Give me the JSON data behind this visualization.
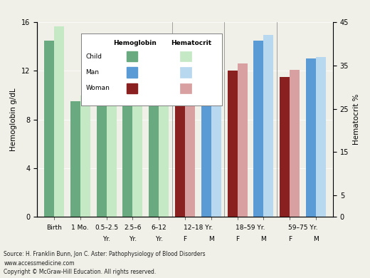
{
  "ylabel_left": "Hemoglobin g/dL",
  "ylabel_right": "Hematocrit %",
  "ylim_left": [
    0,
    16
  ],
  "ylim_right": [
    0,
    45
  ],
  "yticks_left": [
    0,
    4,
    8,
    12,
    16
  ],
  "yticks_right": [
    0,
    5,
    15,
    25,
    35,
    45
  ],
  "groups": [
    {
      "label": "Birth",
      "sublabel": "",
      "hgb": 14.5,
      "hct": 44.0,
      "type": "child"
    },
    {
      "label": "1 Mo.",
      "sublabel": "",
      "hgb": 9.5,
      "hct": 28.0,
      "type": "child"
    },
    {
      "label": "0.5–2.5\nYr.",
      "sublabel": "",
      "hgb": 10.0,
      "hct": 30.0,
      "type": "child"
    },
    {
      "label": "2.5–6\nYr.",
      "sublabel": "",
      "hgb": 11.0,
      "hct": 32.0,
      "type": "child"
    },
    {
      "label": "6–12\nYr.",
      "sublabel": "",
      "hgb": 11.5,
      "hct": 33.5,
      "type": "child"
    },
    {
      "label": "12–18 Yr.",
      "sublabel": "F",
      "hgb": 12.0,
      "hct": 35.5,
      "type": "woman"
    },
    {
      "label": "12–18 Yr.",
      "sublabel": "M",
      "hgb": 13.0,
      "hct": 36.5,
      "type": "man"
    },
    {
      "label": "18–59 Yr.",
      "sublabel": "F",
      "hgb": 12.0,
      "hct": 35.5,
      "type": "woman"
    },
    {
      "label": "18–59 Yr.",
      "sublabel": "M",
      "hgb": 14.5,
      "hct": 42.0,
      "type": "man"
    },
    {
      "label": "59–75 Yr.",
      "sublabel": "F",
      "hgb": 11.5,
      "hct": 34.0,
      "type": "woman"
    },
    {
      "label": "59–75 Yr.",
      "sublabel": "M",
      "hgb": 13.0,
      "hct": 37.0,
      "type": "man"
    }
  ],
  "colors": {
    "child_hgb": "#6aaa80",
    "child_hct": "#c5e8c5",
    "man_hgb": "#5b9bd5",
    "man_hct": "#b8d8f0",
    "woman_hgb": "#8b2020",
    "woman_hct": "#d8a0a0"
  },
  "legend_title_hgb": "Hemoglobin",
  "legend_title_hct": "Hematocrit",
  "legend_rows": [
    "Child",
    "Man",
    "Woman"
  ],
  "source_line1": "Source: H. Franklin Bunn, Jon C. Aster: Pathophysiology of Blood Disorders",
  "source_line2": "www.accessmedicine.com",
  "source_line3": "Copyright © McGraw-Hill Education. All rights reserved.",
  "bg_color": "#f0f0e8"
}
